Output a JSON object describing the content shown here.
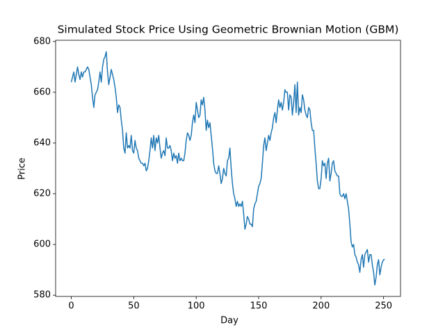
{
  "chart_data": {
    "type": "line",
    "title": "Simulated Stock Price Using Geometric Brownian Motion (GBM)",
    "xlabel": "Day",
    "ylabel": "Price",
    "x": [
      0,
      1,
      2,
      3,
      4,
      5,
      6,
      7,
      8,
      9,
      10,
      11,
      12,
      13,
      14,
      15,
      16,
      17,
      18,
      19,
      20,
      21,
      22,
      23,
      24,
      25,
      26,
      27,
      28,
      29,
      30,
      31,
      32,
      33,
      34,
      35,
      36,
      37,
      38,
      39,
      40,
      41,
      42,
      43,
      44,
      45,
      46,
      47,
      48,
      49,
      50,
      51,
      52,
      53,
      54,
      55,
      56,
      57,
      58,
      59,
      60,
      61,
      62,
      63,
      64,
      65,
      66,
      67,
      68,
      69,
      70,
      71,
      72,
      73,
      74,
      75,
      76,
      77,
      78,
      79,
      80,
      81,
      82,
      83,
      84,
      85,
      86,
      87,
      88,
      89,
      90,
      91,
      92,
      93,
      94,
      95,
      96,
      97,
      98,
      99,
      100,
      101,
      102,
      103,
      104,
      105,
      106,
      107,
      108,
      109,
      110,
      111,
      112,
      113,
      114,
      115,
      116,
      117,
      118,
      119,
      120,
      121,
      122,
      123,
      124,
      125,
      126,
      127,
      128,
      129,
      130,
      131,
      132,
      133,
      134,
      135,
      136,
      137,
      138,
      139,
      140,
      141,
      142,
      143,
      144,
      145,
      146,
      147,
      148,
      149,
      150,
      151,
      152,
      153,
      154,
      155,
      156,
      157,
      158,
      159,
      160,
      161,
      162,
      163,
      164,
      165,
      166,
      167,
      168,
      169,
      170,
      171,
      172,
      173,
      174,
      175,
      176,
      177,
      178,
      179,
      180,
      181,
      182,
      183,
      184,
      185,
      186,
      187,
      188,
      189,
      190,
      191,
      192,
      193,
      194,
      195,
      196,
      197,
      198,
      199,
      200,
      201,
      202,
      203,
      204,
      205,
      206,
      207,
      208,
      209,
      210,
      211,
      212,
      213,
      214,
      215,
      216,
      217,
      218,
      219,
      220,
      221,
      222,
      223,
      224,
      225,
      226,
      227,
      228,
      229,
      230,
      231,
      232,
      233,
      234,
      235,
      236,
      237,
      238,
      239,
      240,
      241,
      242,
      243,
      244,
      245,
      246,
      247,
      248,
      249,
      250,
      251
    ],
    "series": [
      {
        "color": "#1f77b4",
        "values": [
          664,
          666,
          668,
          664,
          667,
          670,
          667,
          665,
          668,
          666,
          668,
          668,
          669,
          670,
          669,
          666,
          663,
          658,
          654,
          659,
          660,
          661,
          664,
          668,
          664,
          670,
          673,
          674,
          676,
          668,
          663,
          666,
          669,
          667,
          665,
          662,
          658,
          652,
          655,
          654,
          649,
          645,
          638,
          636,
          644,
          638,
          639,
          638,
          643,
          637,
          636,
          641,
          638,
          637,
          634,
          633,
          632,
          632,
          631,
          632,
          629,
          630,
          633,
          637,
          642,
          638,
          643,
          637,
          642,
          640,
          643,
          638,
          634,
          636,
          637,
          635,
          642,
          638,
          638,
          639,
          637,
          633,
          636,
          634,
          635,
          632,
          636,
          633,
          634,
          633,
          633,
          636,
          641,
          644,
          643,
          641,
          643,
          648,
          651,
          648,
          656,
          653,
          650,
          651,
          657,
          655,
          658,
          653,
          645,
          649,
          646,
          648,
          643,
          638,
          632,
          629,
          628,
          628,
          631,
          628,
          624,
          626,
          630,
          628,
          627,
          633,
          634,
          638,
          630,
          624,
          620,
          618,
          615,
          617,
          615,
          616,
          615,
          617,
          612,
          606,
          608,
          611,
          610,
          608,
          608,
          607,
          614,
          616,
          617,
          620,
          623,
          624,
          626,
          632,
          639,
          642,
          637,
          640,
          643,
          641,
          644,
          646,
          650,
          652,
          648,
          653,
          657,
          654,
          656,
          653,
          656,
          661,
          660,
          660,
          653,
          659,
          658,
          651,
          656,
          663,
          652,
          664,
          651,
          654,
          652,
          659,
          657,
          653,
          651,
          650,
          654,
          653,
          648,
          645,
          645,
          638,
          632,
          625,
          622,
          622,
          626,
          633,
          631,
          632,
          626,
          632,
          634,
          625,
          628,
          632,
          633,
          629,
          628,
          627,
          627,
          620,
          619,
          619,
          620,
          618,
          620,
          617,
          614,
          608,
          601,
          599,
          600,
          596,
          595,
          593,
          592,
          589,
          594,
          596,
          591,
          596,
          597,
          598,
          593,
          596,
          596,
          592,
          589,
          584,
          587,
          592,
          594,
          588,
          591,
          593,
          594,
          594
        ]
      }
    ],
    "xlim": [
      -12.55,
      263.55
    ],
    "ylim": [
      579.5,
      680.5
    ],
    "xticks": [
      0,
      50,
      100,
      150,
      200,
      250
    ],
    "yticks": [
      580,
      600,
      620,
      640,
      660,
      680
    ]
  }
}
